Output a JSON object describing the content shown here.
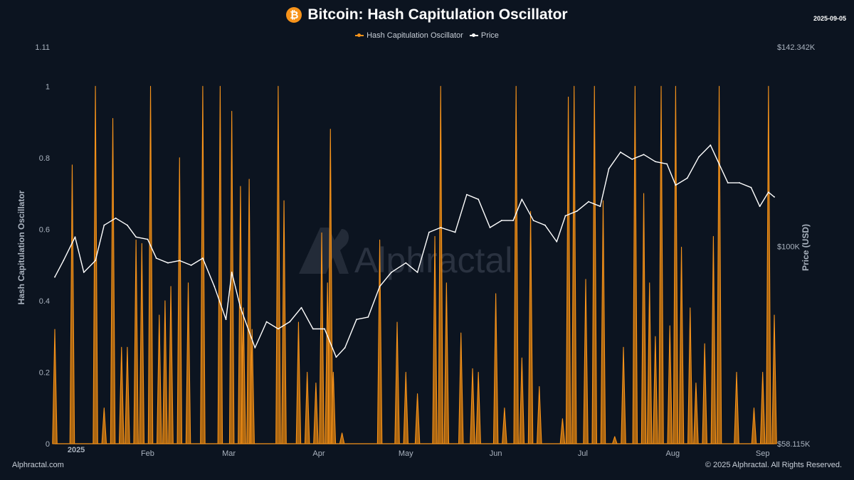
{
  "header": {
    "title": "Bitcoin: Hash Capitulation Oscillator",
    "date": "2025-09-05",
    "logo_glyph": "₿"
  },
  "legend": [
    {
      "label": "Hash Capitulation Oscillator",
      "color": "#f7931a"
    },
    {
      "label": "Price",
      "color": "#ffffff"
    }
  ],
  "footer": {
    "left": "Alphractal.com",
    "right": "© 2025 Alphractal. All Rights Reserved."
  },
  "watermark": "Alphractal",
  "chart_data": {
    "type": "area",
    "title": "Bitcoin: Hash Capitulation Oscillator",
    "ylabel_left": "Hash Capitulation Oscillator",
    "ylabel_right": "Price (USD)",
    "y_left_range": [
      0,
      1.11
    ],
    "y_left_ticks": [
      "0",
      "0.2",
      "0.4",
      "0.6",
      "0.8",
      "1",
      "1.11"
    ],
    "y_right_ticks": [
      "$58.115K",
      "$100K",
      "$142.342K"
    ],
    "x_range": [
      "2024-12-31",
      "2025-09-05"
    ],
    "x_ticks": [
      {
        "date": "2025-01-01",
        "label": "2025"
      },
      {
        "date": "2025-02-01",
        "label": "Feb"
      },
      {
        "date": "2025-03-01",
        "label": "Mar"
      },
      {
        "date": "2025-04-01",
        "label": "Apr"
      },
      {
        "date": "2025-05-01",
        "label": "May"
      },
      {
        "date": "2025-06-01",
        "label": "Jun"
      },
      {
        "date": "2025-07-01",
        "label": "Jul"
      },
      {
        "date": "2025-08-01",
        "label": "Aug"
      },
      {
        "date": "2025-09-01",
        "label": "Sep"
      }
    ],
    "grid": false,
    "legend_position": "top-center",
    "series": [
      {
        "name": "Hash Capitulation Oscillator",
        "color": "#f7931a",
        "spikes": [
          [
            "2024-12-31",
            0.32
          ],
          [
            "2025-01-06",
            0.78
          ],
          [
            "2025-01-14",
            1.0
          ],
          [
            "2025-01-17",
            0.1
          ],
          [
            "2025-01-20",
            0.91
          ],
          [
            "2025-01-23",
            0.27
          ],
          [
            "2025-01-25",
            0.27
          ],
          [
            "2025-01-28",
            0.57
          ],
          [
            "2025-01-30",
            0.56
          ],
          [
            "2025-02-02",
            1.0
          ],
          [
            "2025-02-05",
            0.36
          ],
          [
            "2025-02-07",
            0.4
          ],
          [
            "2025-02-09",
            0.44
          ],
          [
            "2025-02-12",
            0.8
          ],
          [
            "2025-02-15",
            0.45
          ],
          [
            "2025-02-20",
            1.0
          ],
          [
            "2025-02-26",
            1.0
          ],
          [
            "2025-03-02",
            0.93
          ],
          [
            "2025-03-05",
            0.72
          ],
          [
            "2025-03-06",
            0.38
          ],
          [
            "2025-03-08",
            0.74
          ],
          [
            "2025-03-09",
            0.32
          ],
          [
            "2025-03-18",
            1.0
          ],
          [
            "2025-03-20",
            0.68
          ],
          [
            "2025-03-25",
            0.34
          ],
          [
            "2025-03-28",
            0.2
          ],
          [
            "2025-03-31",
            0.17
          ],
          [
            "2025-04-02",
            0.59
          ],
          [
            "2025-04-04",
            0.45
          ],
          [
            "2025-04-05",
            0.88
          ],
          [
            "2025-04-06",
            0.2
          ],
          [
            "2025-04-09",
            0.03
          ],
          [
            "2025-04-22",
            0.57
          ],
          [
            "2025-04-28",
            0.34
          ],
          [
            "2025-05-01",
            0.2
          ],
          [
            "2025-05-05",
            0.14
          ],
          [
            "2025-05-11",
            0.58
          ],
          [
            "2025-05-13",
            1.0
          ],
          [
            "2025-05-15",
            0.45
          ],
          [
            "2025-05-20",
            0.31
          ],
          [
            "2025-05-24",
            0.21
          ],
          [
            "2025-05-26",
            0.2
          ],
          [
            "2025-06-01",
            0.42
          ],
          [
            "2025-06-04",
            0.1
          ],
          [
            "2025-06-08",
            1.0
          ],
          [
            "2025-06-10",
            0.24
          ],
          [
            "2025-06-13",
            0.65
          ],
          [
            "2025-06-16",
            0.16
          ],
          [
            "2025-06-24",
            0.07
          ],
          [
            "2025-06-26",
            0.97
          ],
          [
            "2025-06-28",
            1.0
          ],
          [
            "2025-07-02",
            0.46
          ],
          [
            "2025-07-05",
            1.0
          ],
          [
            "2025-07-08",
            0.68
          ],
          [
            "2025-07-12",
            0.02
          ],
          [
            "2025-07-15",
            0.27
          ],
          [
            "2025-07-19",
            1.0
          ],
          [
            "2025-07-22",
            0.7
          ],
          [
            "2025-07-24",
            0.45
          ],
          [
            "2025-07-26",
            0.3
          ],
          [
            "2025-07-28",
            1.0
          ],
          [
            "2025-07-31",
            0.33
          ],
          [
            "2025-08-02",
            1.0
          ],
          [
            "2025-08-04",
            0.55
          ],
          [
            "2025-08-07",
            0.38
          ],
          [
            "2025-08-09",
            0.17
          ],
          [
            "2025-08-12",
            0.28
          ],
          [
            "2025-08-15",
            0.58
          ],
          [
            "2025-08-17",
            1.0
          ],
          [
            "2025-08-23",
            0.2
          ],
          [
            "2025-08-29",
            0.1
          ],
          [
            "2025-09-01",
            0.2
          ],
          [
            "2025-09-03",
            1.0
          ],
          [
            "2025-09-05",
            0.36
          ]
        ]
      },
      {
        "name": "Price",
        "color": "#ffffff",
        "points": [
          [
            "2024-12-31",
            93.5
          ],
          [
            "2025-01-03",
            97.0
          ],
          [
            "2025-01-07",
            102.0
          ],
          [
            "2025-01-10",
            94.5
          ],
          [
            "2025-01-14",
            97.0
          ],
          [
            "2025-01-17",
            104.5
          ],
          [
            "2025-01-21",
            106.0
          ],
          [
            "2025-01-25",
            104.5
          ],
          [
            "2025-01-28",
            102.0
          ],
          [
            "2025-02-01",
            101.5
          ],
          [
            "2025-02-04",
            97.5
          ],
          [
            "2025-02-08",
            96.5
          ],
          [
            "2025-02-12",
            97.0
          ],
          [
            "2025-02-16",
            96.0
          ],
          [
            "2025-02-20",
            97.5
          ],
          [
            "2025-02-24",
            91.5
          ],
          [
            "2025-02-28",
            84.5
          ],
          [
            "2025-03-02",
            94.5
          ],
          [
            "2025-03-05",
            87.0
          ],
          [
            "2025-03-10",
            78.5
          ],
          [
            "2025-03-14",
            84.0
          ],
          [
            "2025-03-18",
            82.5
          ],
          [
            "2025-03-22",
            84.0
          ],
          [
            "2025-03-26",
            87.0
          ],
          [
            "2025-03-30",
            82.5
          ],
          [
            "2025-04-03",
            82.5
          ],
          [
            "2025-04-07",
            76.5
          ],
          [
            "2025-04-10",
            78.5
          ],
          [
            "2025-04-14",
            84.5
          ],
          [
            "2025-04-18",
            85.0
          ],
          [
            "2025-04-22",
            91.5
          ],
          [
            "2025-04-26",
            94.5
          ],
          [
            "2025-05-01",
            96.5
          ],
          [
            "2025-05-05",
            94.5
          ],
          [
            "2025-05-09",
            103.0
          ],
          [
            "2025-05-13",
            104.0
          ],
          [
            "2025-05-18",
            103.0
          ],
          [
            "2025-05-22",
            111.0
          ],
          [
            "2025-05-26",
            110.0
          ],
          [
            "2025-05-30",
            104.0
          ],
          [
            "2025-06-03",
            105.5
          ],
          [
            "2025-06-07",
            105.5
          ],
          [
            "2025-06-10",
            110.0
          ],
          [
            "2025-06-14",
            105.5
          ],
          [
            "2025-06-18",
            104.5
          ],
          [
            "2025-06-22",
            101.0
          ],
          [
            "2025-06-25",
            106.5
          ],
          [
            "2025-06-29",
            107.5
          ],
          [
            "2025-07-03",
            109.5
          ],
          [
            "2025-07-07",
            108.5
          ],
          [
            "2025-07-10",
            116.5
          ],
          [
            "2025-07-14",
            120.0
          ],
          [
            "2025-07-18",
            118.5
          ],
          [
            "2025-07-22",
            119.5
          ],
          [
            "2025-07-26",
            118.0
          ],
          [
            "2025-07-30",
            117.5
          ],
          [
            "2025-08-02",
            113.0
          ],
          [
            "2025-08-06",
            114.5
          ],
          [
            "2025-08-10",
            119.0
          ],
          [
            "2025-08-14",
            121.5
          ],
          [
            "2025-08-17",
            117.5
          ],
          [
            "2025-08-20",
            113.5
          ],
          [
            "2025-08-24",
            113.5
          ],
          [
            "2025-08-28",
            112.5
          ],
          [
            "2025-08-31",
            108.5
          ],
          [
            "2025-09-03",
            111.5
          ],
          [
            "2025-09-05",
            110.5
          ]
        ]
      }
    ]
  }
}
